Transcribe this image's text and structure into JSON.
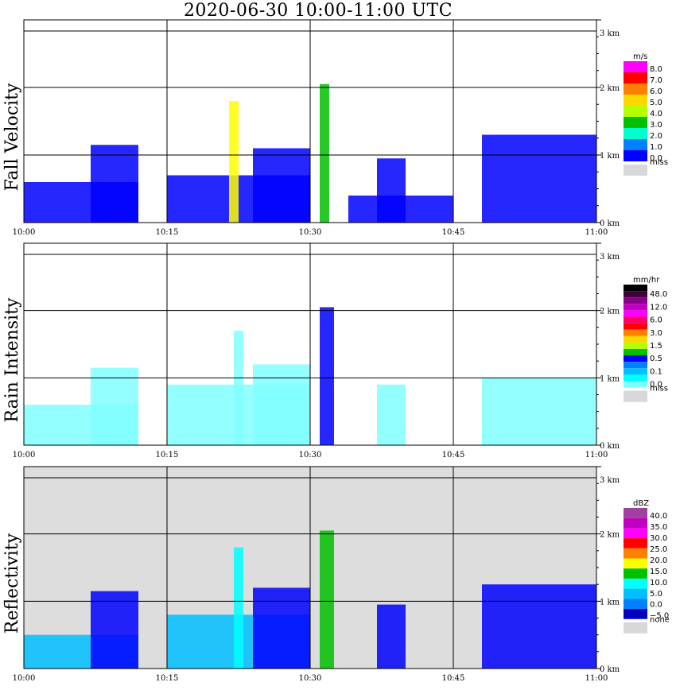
{
  "title": "2020-06-30   10:00-11:00 UTC",
  "chart_data": [
    {
      "type": "heatmap",
      "ylabel": "Fall Velocity",
      "x_ticks": [
        "10:00",
        "10:15",
        "10:30",
        "10:45",
        "11:00"
      ],
      "y_ticks": [
        "0 km",
        "1 km",
        "2 km",
        "3 km"
      ],
      "ylim": [
        0,
        3.0
      ],
      "background": "#ffffff",
      "colorbar": {
        "unit": "m/s",
        "labels": [
          "8.0",
          "7.0",
          "6.0",
          "5.0",
          "4.0",
          "3.0",
          "2.0",
          "1.0",
          "0.0"
        ],
        "colors": [
          "#ff00ff",
          "#ff0000",
          "#ff7f00",
          "#ffd700",
          "#b4ff00",
          "#00c000",
          "#00ffd0",
          "#0080ff",
          "#0000ff"
        ],
        "missing_label": "miss",
        "missing_color": "#d8d8d8"
      },
      "features": [
        {
          "time_min": [
            0,
            12
          ],
          "top_km": 0.6,
          "color": "#0000ff"
        },
        {
          "time_min": [
            7,
            12
          ],
          "top_km": 1.15,
          "color": "#0000ff"
        },
        {
          "time_min": [
            15,
            30
          ],
          "top_km": 0.7,
          "color": "#0000ff"
        },
        {
          "time_min": [
            21.5,
            22.5
          ],
          "top_km": 1.8,
          "color": "#ffff00"
        },
        {
          "time_min": [
            24,
            30
          ],
          "top_km": 1.1,
          "color": "#0000ff"
        },
        {
          "time_min": [
            31,
            32
          ],
          "top_km": 2.05,
          "color": "#00c000"
        },
        {
          "time_min": [
            34,
            45
          ],
          "top_km": 0.4,
          "color": "#0000ff"
        },
        {
          "time_min": [
            37,
            40
          ],
          "top_km": 0.95,
          "color": "#0000ff"
        },
        {
          "time_min": [
            48,
            60
          ],
          "top_km": 1.3,
          "color": "#0000ff"
        }
      ]
    },
    {
      "type": "heatmap",
      "ylabel": "Rain Intensity",
      "x_ticks": [
        "10:00",
        "10:15",
        "10:30",
        "10:45",
        "11:00"
      ],
      "y_ticks": [
        "0 km",
        "1 km",
        "2 km",
        "3 km"
      ],
      "ylim": [
        0,
        3.0
      ],
      "background": "#ffffff",
      "colorbar": {
        "unit": "mm/hr",
        "labels": [
          "48.0",
          "12.0",
          "6.0",
          "3.0",
          "1.5",
          "0.5",
          "0.1",
          "0.0"
        ],
        "colors": [
          "#000000",
          "#400040",
          "#8b008b",
          "#c000c0",
          "#ff00ff",
          "#ff0060",
          "#ff0000",
          "#ff7f00",
          "#ffd700",
          "#b4ff00",
          "#00c000",
          "#0000ff",
          "#0080ff",
          "#00bfff",
          "#00ffff",
          "#80ffff"
        ],
        "missing_label": "miss",
        "missing_color": "#d8d8d8"
      },
      "features": [
        {
          "time_min": [
            0,
            12
          ],
          "top_km": 0.6,
          "color": "#80ffff"
        },
        {
          "time_min": [
            7,
            12
          ],
          "top_km": 1.15,
          "color": "#80ffff"
        },
        {
          "time_min": [
            15,
            30
          ],
          "top_km": 0.9,
          "color": "#80ffff"
        },
        {
          "time_min": [
            22,
            23
          ],
          "top_km": 1.7,
          "color": "#80ffff"
        },
        {
          "time_min": [
            24,
            30
          ],
          "top_km": 1.2,
          "color": "#80ffff"
        },
        {
          "time_min": [
            31,
            32.5
          ],
          "top_km": 2.05,
          "color": "#0000ff"
        },
        {
          "time_min": [
            37,
            40
          ],
          "top_km": 0.9,
          "color": "#80ffff"
        },
        {
          "time_min": [
            48,
            60
          ],
          "top_km": 1.0,
          "color": "#80ffff"
        }
      ]
    },
    {
      "type": "heatmap",
      "ylabel": "Reflectivity",
      "x_ticks": [
        "10:00",
        "10:15",
        "10:30",
        "10:45",
        "11:00"
      ],
      "y_ticks": [
        "0 km",
        "1 km",
        "2 km",
        "3 km"
      ],
      "ylim": [
        0,
        3.0
      ],
      "background": "#dddddd",
      "colorbar": {
        "unit": "dBZ",
        "labels": [
          "40.0",
          "35.0",
          "30.0",
          "25.0",
          "20.0",
          "15.0",
          "10.0",
          "5.0",
          "0.0",
          "−5.0"
        ],
        "colors": [
          "#a040a0",
          "#c000c0",
          "#ff00ff",
          "#ff0000",
          "#ff7f00",
          "#ffff00",
          "#00c000",
          "#00ffff",
          "#00bfff",
          "#0080ff",
          "#0000c0"
        ],
        "missing_label": "none",
        "missing_color": "#d8d8d8"
      },
      "features": [
        {
          "time_min": [
            0,
            12
          ],
          "top_km": 0.5,
          "color": "#00bfff"
        },
        {
          "time_min": [
            7,
            12
          ],
          "top_km": 1.15,
          "color": "#0000ff"
        },
        {
          "time_min": [
            15,
            30
          ],
          "top_km": 0.8,
          "color": "#00bfff"
        },
        {
          "time_min": [
            22,
            23
          ],
          "top_km": 1.8,
          "color": "#00ffff"
        },
        {
          "time_min": [
            24,
            30
          ],
          "top_km": 1.2,
          "color": "#0000ff"
        },
        {
          "time_min": [
            31,
            32.5
          ],
          "top_km": 2.05,
          "color": "#00c000"
        },
        {
          "time_min": [
            37,
            40
          ],
          "top_km": 0.95,
          "color": "#0000ff"
        },
        {
          "time_min": [
            48,
            60
          ],
          "top_km": 1.25,
          "color": "#0000ff"
        }
      ]
    }
  ]
}
